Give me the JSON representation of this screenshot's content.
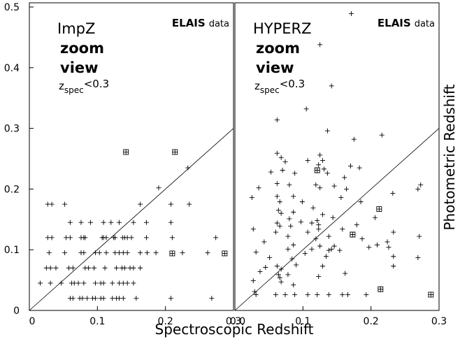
{
  "chart_data": [
    {
      "type": "scatter",
      "annotation": {
        "lines": [
          "ImpZ",
          "zoom",
          "view"
        ],
        "condition": {
          "symbol": "z",
          "subscript": "spec",
          "text": "<0.3"
        },
        "source": {
          "bold": "ELAIS",
          "text": "data"
        }
      },
      "xlim": [
        0,
        0.3
      ],
      "xticks": [
        0,
        0.1,
        0.2,
        0.3
      ],
      "ylim": [
        0,
        0.5
      ],
      "yticks": [
        0,
        0.1,
        0.2,
        0.3,
        0.4,
        0.5
      ],
      "series": [
        {
          "marker": "plus",
          "color": "#000000",
          "x": [
            0.027,
            0.033,
            0.052,
            0.163,
            0.208,
            0.235,
            0.06,
            0.076,
            0.09,
            0.109,
            0.12,
            0.132,
            0.153,
            0.172,
            0.208,
            0.027,
            0.033,
            0.054,
            0.06,
            0.076,
            0.08,
            0.082,
            0.107,
            0.109,
            0.113,
            0.124,
            0.126,
            0.137,
            0.14,
            0.144,
            0.15,
            0.172,
            0.21,
            0.274,
            0.029,
            0.052,
            0.076,
            0.08,
            0.097,
            0.103,
            0.113,
            0.126,
            0.132,
            0.138,
            0.144,
            0.163,
            0.173,
            0.186,
            0.225,
            0.262,
            0.025,
            0.031,
            0.039,
            0.058,
            0.064,
            0.082,
            0.087,
            0.095,
            0.111,
            0.128,
            0.136,
            0.14,
            0.148,
            0.153,
            0.163,
            0.016,
            0.031,
            0.047,
            0.062,
            0.066,
            0.072,
            0.08,
            0.097,
            0.105,
            0.109,
            0.122,
            0.132,
            0.138,
            0.144,
            0.153,
            0.06,
            0.064,
            0.074,
            0.078,
            0.085,
            0.093,
            0.097,
            0.105,
            0.109,
            0.122,
            0.128,
            0.132,
            0.138,
            0.157,
            0.208,
            0.268,
            0.19,
            0.233
          ],
          "values": [
            0.175,
            0.175,
            0.175,
            0.175,
            0.175,
            0.175,
            0.145,
            0.145,
            0.145,
            0.145,
            0.145,
            0.145,
            0.145,
            0.145,
            0.145,
            0.12,
            0.12,
            0.12,
            0.12,
            0.12,
            0.12,
            0.12,
            0.12,
            0.12,
            0.12,
            0.12,
            0.12,
            0.12,
            0.12,
            0.12,
            0.12,
            0.12,
            0.12,
            0.12,
            0.095,
            0.095,
            0.095,
            0.095,
            0.095,
            0.095,
            0.095,
            0.095,
            0.095,
            0.095,
            0.095,
            0.095,
            0.095,
            0.095,
            0.095,
            0.095,
            0.07,
            0.07,
            0.07,
            0.07,
            0.07,
            0.07,
            0.07,
            0.07,
            0.07,
            0.07,
            0.07,
            0.07,
            0.07,
            0.07,
            0.07,
            0.045,
            0.045,
            0.045,
            0.045,
            0.045,
            0.045,
            0.045,
            0.045,
            0.045,
            0.045,
            0.045,
            0.045,
            0.045,
            0.045,
            0.045,
            0.02,
            0.02,
            0.02,
            0.02,
            0.02,
            0.02,
            0.02,
            0.02,
            0.02,
            0.02,
            0.02,
            0.02,
            0.02,
            0.02,
            0.02,
            0.02,
            0.202,
            0.235
          ]
        },
        {
          "marker": "boxed-plus",
          "color": "#000000",
          "x": [
            0.142,
            0.214,
            0.21,
            0.287
          ],
          "values": [
            0.261,
            0.261,
            0.094,
            0.094
          ]
        }
      ]
    },
    {
      "type": "scatter",
      "annotation": {
        "lines": [
          "HYPERZ",
          "zoom",
          "view"
        ],
        "condition": {
          "symbol": "z",
          "subscript": "spec",
          "text": "<0.3"
        },
        "source": {
          "bold": "ELAIS",
          "text": "data"
        }
      },
      "xlim": [
        0,
        0.3
      ],
      "xticks": [
        {
          "value": 0,
          "label": "0.0"
        },
        0.1,
        0.2,
        0.3
      ],
      "ylim": [
        0,
        0.5
      ],
      "series": [
        {
          "marker": "plus",
          "color": "#000000",
          "x": [
            0.171,
            0.125,
            0.142,
            0.105,
            0.062,
            0.136,
            0.216,
            0.175,
            0.062,
            0.068,
            0.074,
            0.107,
            0.125,
            0.129,
            0.123,
            0.131,
            0.17,
            0.183,
            0.053,
            0.07,
            0.088,
            0.136,
            0.161,
            0.035,
            0.062,
            0.08,
            0.119,
            0.125,
            0.146,
            0.164,
            0.273,
            0.269,
            0.025,
            0.062,
            0.066,
            0.086,
            0.099,
            0.156,
            0.185,
            0.232,
            0.064,
            0.068,
            0.086,
            0.115,
            0.129,
            0.08,
            0.097,
            0.113,
            0.062,
            0.066,
            0.082,
            0.121,
            0.123,
            0.123,
            0.144,
            0.179,
            0.206,
            0.027,
            0.06,
            0.078,
            0.107,
            0.119,
            0.138,
            0.158,
            0.233,
            0.271,
            0.043,
            0.086,
            0.125,
            0.146,
            0.187,
            0.197,
            0.209,
            0.224,
            0.226,
            0.031,
            0.078,
            0.103,
            0.113,
            0.138,
            0.142,
            0.154,
            0.051,
            0.084,
            0.134,
            0.233,
            0.269,
            0.045,
            0.062,
            0.068,
            0.09,
            0.129,
            0.233,
            0.064,
            0.066,
            0.037,
            0.078,
            0.123,
            0.162,
            0.027,
            0.086,
            0.068,
            0.029,
            0.031,
            0.06,
            0.074,
            0.088,
            0.107,
            0.121,
            0.138,
            0.158,
            0.166,
            0.193
          ],
          "values": [
            0.489,
            0.438,
            0.37,
            0.332,
            0.314,
            0.296,
            0.289,
            0.282,
            0.259,
            0.252,
            0.245,
            0.247,
            0.256,
            0.247,
            0.24,
            0.233,
            0.238,
            0.235,
            0.228,
            0.231,
            0.226,
            0.226,
            0.219,
            0.202,
            0.209,
            0.207,
            0.207,
            0.202,
            0.205,
            0.2,
            0.207,
            0.2,
            0.186,
            0.188,
            0.179,
            0.188,
            0.179,
            0.186,
            0.179,
            0.193,
            0.165,
            0.16,
            0.162,
            0.169,
            0.158,
            0.151,
            0.146,
            0.144,
            0.144,
            0.139,
            0.139,
            0.148,
            0.141,
            0.134,
            0.153,
            0.141,
            0.153,
            0.134,
            0.129,
            0.122,
            0.129,
            0.118,
            0.122,
            0.134,
            0.129,
            0.122,
            0.113,
            0.108,
            0.106,
            0.106,
            0.118,
            0.104,
            0.108,
            0.113,
            0.104,
            0.096,
            0.101,
            0.094,
            0.101,
            0.099,
            0.101,
            0.099,
            0.087,
            0.085,
            0.089,
            0.089,
            0.087,
            0.071,
            0.073,
            0.068,
            0.075,
            0.073,
            0.073,
            0.059,
            0.054,
            0.064,
            0.059,
            0.056,
            0.061,
            0.049,
            0.042,
            0.047,
            0.031,
            0.026,
            0.026,
            0.026,
            0.026,
            0.026,
            0.026,
            0.026,
            0.026,
            0.026,
            0.026
          ]
        },
        {
          "marker": "boxed-plus",
          "color": "#000000",
          "x": [
            0.121,
            0.173,
            0.212,
            0.214,
            0.288
          ],
          "values": [
            0.231,
            0.125,
            0.167,
            0.035,
            0.026
          ]
        }
      ]
    }
  ],
  "x_label": "Spectroscopic Redshift",
  "y_label": "Photometric Redshift"
}
